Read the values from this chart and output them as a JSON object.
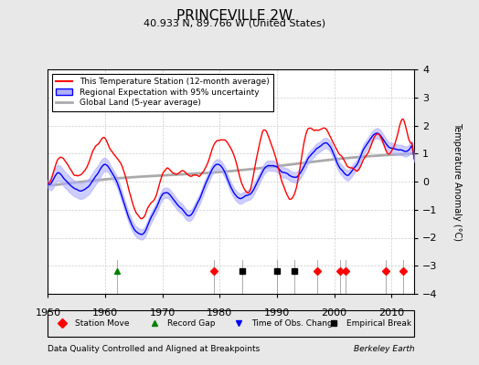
{
  "title": "PRINCEVILLE 2W",
  "subtitle": "40.933 N, 89.766 W (United States)",
  "ylabel": "Temperature Anomaly (°C)",
  "xlabel_note": "Data Quality Controlled and Aligned at Breakpoints",
  "credit": "Berkeley Earth",
  "year_start": 1950,
  "year_end": 2014,
  "ylim": [
    -4,
    4
  ],
  "yticks": [
    -4,
    -3,
    -2,
    -1,
    0,
    1,
    2,
    3,
    4
  ],
  "xticks": [
    1950,
    1960,
    1970,
    1980,
    1990,
    2000,
    2010
  ],
  "bg_color": "#e8e8e8",
  "plot_bg_color": "#ffffff",
  "station_move_years": [
    1979,
    1997,
    2001,
    2002,
    2009,
    2012
  ],
  "record_gap_years": [
    1962
  ],
  "obs_change_years": [],
  "empirical_break_years": [
    1984,
    1990,
    1993
  ],
  "seed": 12
}
